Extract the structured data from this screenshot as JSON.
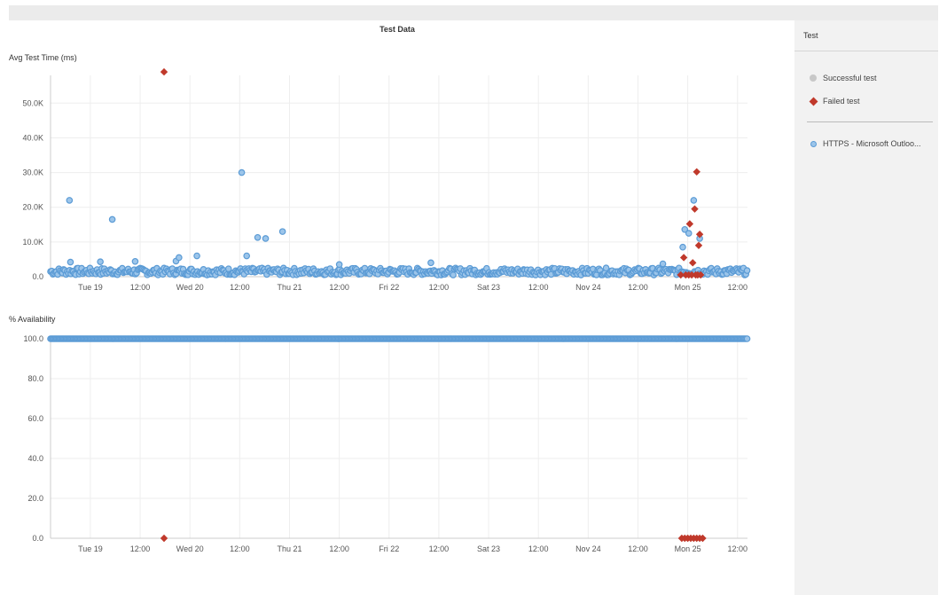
{
  "page": {
    "title": "Test Data"
  },
  "legend": {
    "header": "Test",
    "items": [
      {
        "label": "Successful test",
        "color": "#c8c8c8"
      },
      {
        "label": "Failed test",
        "color": "#c0392b"
      }
    ],
    "series": [
      {
        "label": "HTTPS - Microsoft Outloo...",
        "color": "#5b9bd5"
      }
    ]
  },
  "chart_data": [
    {
      "type": "scatter",
      "title": "Test Data",
      "ylabel": "Avg Test Time (ms)",
      "ylim": [
        0,
        58000
      ],
      "yticks": [
        "0.0",
        "10.0K",
        "20.0K",
        "30.0K",
        "40.0K",
        "50.0K"
      ],
      "ytick_values": [
        0,
        10000,
        20000,
        30000,
        40000,
        50000
      ],
      "xticks": [
        "Tue 19",
        "12:00",
        "Wed 20",
        "12:00",
        "Thu 21",
        "12:00",
        "Fri 22",
        "12:00",
        "Sat 23",
        "12:00",
        "Nov 24",
        "12:00",
        "Mon 25",
        "12:00"
      ],
      "xlim_days": [
        18.6,
        25.6
      ],
      "grid": true,
      "series": [
        {
          "name": "HTTPS - Microsoft Outloo...",
          "marker": "circle",
          "color": "#5b9bd5",
          "notable_points": [
            {
              "x": 18.79,
              "y": 22000
            },
            {
              "x": 18.8,
              "y": 4200
            },
            {
              "x": 19.22,
              "y": 16500
            },
            {
              "x": 19.1,
              "y": 4300
            },
            {
              "x": 19.45,
              "y": 4400
            },
            {
              "x": 19.86,
              "y": 4500
            },
            {
              "x": 19.89,
              "y": 5500
            },
            {
              "x": 20.07,
              "y": 6000
            },
            {
              "x": 20.52,
              "y": 30000
            },
            {
              "x": 20.57,
              "y": 6000
            },
            {
              "x": 20.68,
              "y": 11300
            },
            {
              "x": 20.76,
              "y": 11000
            },
            {
              "x": 20.93,
              "y": 13000
            },
            {
              "x": 21.5,
              "y": 3500
            },
            {
              "x": 22.42,
              "y": 4000
            },
            {
              "x": 24.75,
              "y": 3700
            },
            {
              "x": 24.95,
              "y": 8500
            },
            {
              "x": 24.97,
              "y": 13600
            },
            {
              "x": 25.01,
              "y": 12500
            },
            {
              "x": 25.06,
              "y": 22000
            },
            {
              "x": 25.12,
              "y": 11000
            }
          ],
          "baseline_range": [
            500,
            2500
          ]
        },
        {
          "name": "Failed test",
          "marker": "diamond",
          "color": "#c0392b",
          "notable_points": [
            {
              "x": 19.74,
              "y": 59000
            },
            {
              "x": 24.96,
              "y": 5500
            },
            {
              "x": 25.02,
              "y": 15200
            },
            {
              "x": 25.05,
              "y": 4000
            },
            {
              "x": 25.07,
              "y": 19500
            },
            {
              "x": 25.09,
              "y": 30200
            },
            {
              "x": 25.12,
              "y": 12200
            },
            {
              "x": 25.11,
              "y": 9000
            },
            {
              "x": 24.93,
              "y": 500
            },
            {
              "x": 24.98,
              "y": 500
            },
            {
              "x": 25.01,
              "y": 500
            },
            {
              "x": 25.04,
              "y": 500
            },
            {
              "x": 25.08,
              "y": 500
            },
            {
              "x": 25.1,
              "y": 500
            },
            {
              "x": 25.13,
              "y": 500
            }
          ]
        }
      ]
    },
    {
      "type": "scatter",
      "ylabel": "% Availability",
      "ylim": [
        0,
        100
      ],
      "yticks": [
        "0.0",
        "20.0",
        "40.0",
        "60.0",
        "80.0",
        "100.0"
      ],
      "ytick_values": [
        0,
        20,
        40,
        60,
        80,
        100
      ],
      "xticks": [
        "Tue 19",
        "12:00",
        "Wed 20",
        "12:00",
        "Thu 21",
        "12:00",
        "Fri 22",
        "12:00",
        "Sat 23",
        "12:00",
        "Nov 24",
        "12:00",
        "Mon 25",
        "12:00"
      ],
      "xlim_days": [
        18.6,
        25.6
      ],
      "grid": true,
      "series": [
        {
          "name": "HTTPS - Microsoft Outloo...",
          "marker": "circle",
          "color": "#5b9bd5",
          "x_range": [
            18.6,
            25.6
          ],
          "y": 100
        },
        {
          "name": "Failed test",
          "marker": "diamond",
          "color": "#c0392b",
          "notable_points": [
            {
              "x": 19.74,
              "y": 0
            },
            {
              "x": 24.94,
              "y": 0
            },
            {
              "x": 24.97,
              "y": 0
            },
            {
              "x": 25.0,
              "y": 0
            },
            {
              "x": 25.03,
              "y": 0
            },
            {
              "x": 25.06,
              "y": 0
            },
            {
              "x": 25.09,
              "y": 0
            },
            {
              "x": 25.12,
              "y": 0
            },
            {
              "x": 25.15,
              "y": 0
            }
          ]
        }
      ]
    }
  ]
}
